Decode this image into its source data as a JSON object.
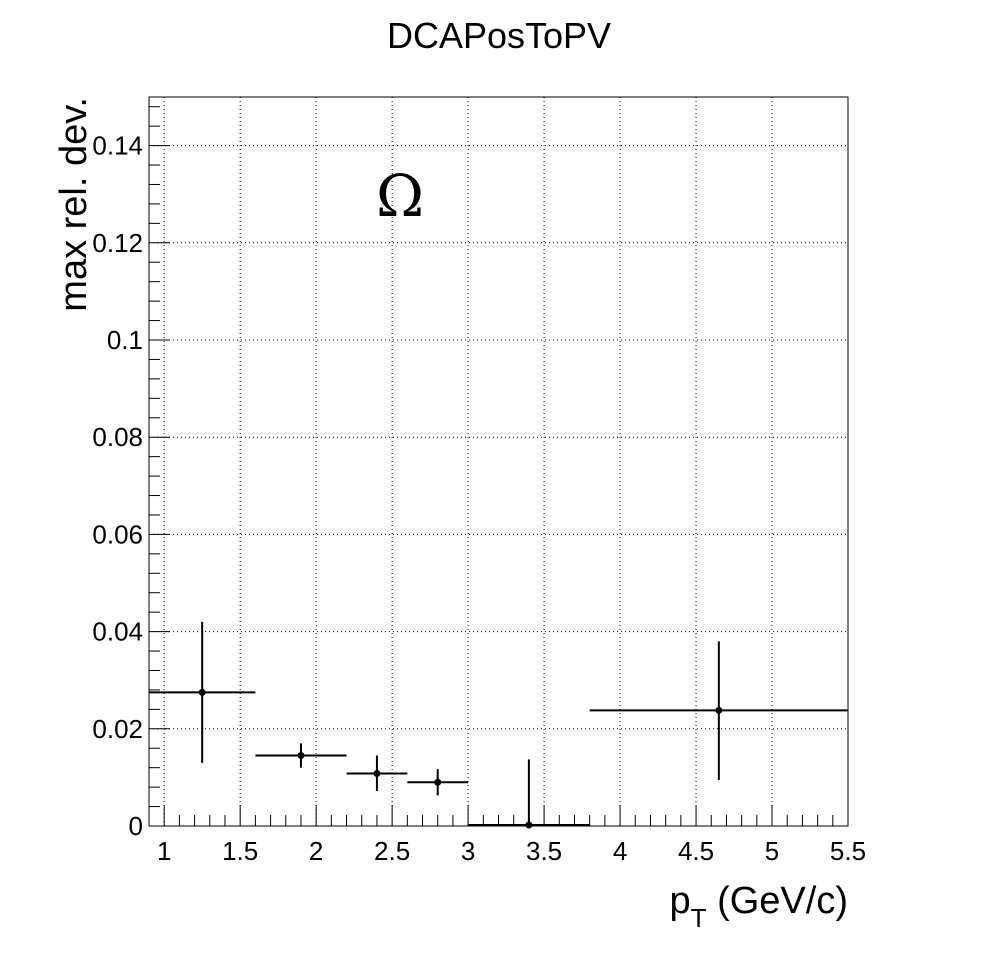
{
  "chart_data": {
    "type": "scatter",
    "title": "DCAPosToPV",
    "xlabel": "p",
    "xlabel_sub": "T",
    "xlabel_unit": " (GeV/c)",
    "ylabel": "max rel. dev.",
    "annotation": "Ω",
    "xlim": [
      0.9,
      5.5
    ],
    "ylim": [
      0,
      0.15
    ],
    "grid": true,
    "x_ticks": [
      "1",
      "1.5",
      "2",
      "2.5",
      "3",
      "3.5",
      "4",
      "4.5",
      "5",
      "5.5"
    ],
    "y_ticks": [
      "0",
      "0.02",
      "0.04",
      "0.06",
      "0.08",
      "0.1",
      "0.12",
      "0.14"
    ],
    "series": [
      {
        "points": [
          {
            "x": 1.25,
            "y": 0.0275,
            "xlow": 0.9,
            "xhigh": 1.6,
            "ylow": 0.013,
            "yhigh": 0.042
          },
          {
            "x": 1.9,
            "y": 0.0145,
            "xlow": 1.6,
            "xhigh": 2.2,
            "ylow": 0.012,
            "yhigh": 0.017
          },
          {
            "x": 2.4,
            "y": 0.0108,
            "xlow": 2.2,
            "xhigh": 2.6,
            "ylow": 0.0072,
            "yhigh": 0.0145
          },
          {
            "x": 2.8,
            "y": 0.009,
            "xlow": 2.6,
            "xhigh": 3.0,
            "ylow": 0.0063,
            "yhigh": 0.0117
          },
          {
            "x": 3.4,
            "y": 0.0002,
            "xlow": 3.0,
            "xhigh": 3.8,
            "ylow": 0.0,
            "yhigh": 0.0137
          },
          {
            "x": 4.65,
            "y": 0.0238,
            "xlow": 3.8,
            "xhigh": 5.5,
            "ylow": 0.0095,
            "yhigh": 0.038
          }
        ]
      }
    ]
  }
}
